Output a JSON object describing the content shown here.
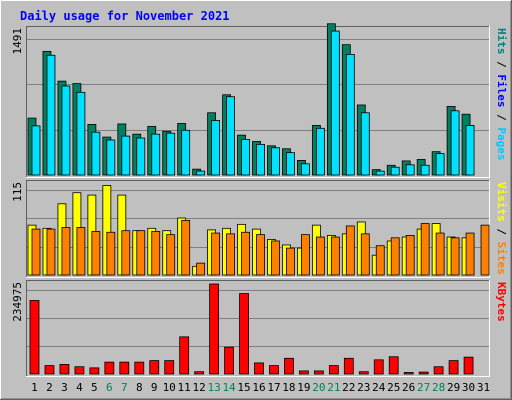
{
  "title": "Daily usage for November 2021",
  "colors": {
    "hits": "#008080",
    "files": "#00e0ff",
    "pages": "#00c8ff",
    "visits": "#ffff00",
    "sites": "#ff8000",
    "kbytes": "#ff0000",
    "weekend_label": "#00805c",
    "plot_bg": "#c0c0c0",
    "title": "#0000ff"
  },
  "chart_data": [
    {
      "type": "bar",
      "name": "hits-files-pages",
      "ymax_label": "1491",
      "ylim": [
        0,
        1491
      ],
      "side_label": [
        {
          "text": "Pages",
          "color": "#00c8ff"
        },
        {
          "text": " / ",
          "color": "#000000"
        },
        {
          "text": "Files",
          "color": "#0000ff"
        },
        {
          "text": " / ",
          "color": "#000000"
        },
        {
          "text": "Hits",
          "color": "#008080"
        }
      ],
      "categories": [
        "1",
        "2",
        "3",
        "4",
        "5",
        "6",
        "7",
        "8",
        "9",
        "10",
        "11",
        "12",
        "13",
        "14",
        "15",
        "16",
        "17",
        "18",
        "19",
        "20",
        "21",
        "22",
        "23",
        "24",
        "25",
        "26",
        "27",
        "28",
        "29",
        "30",
        "31"
      ],
      "series": [
        {
          "name": "Hits",
          "values": [
            585,
            1271,
            965,
            940,
            520,
            390,
            525,
            420,
            500,
            450,
            530,
            60,
            640,
            825,
            410,
            345,
            300,
            270,
            150,
            510,
            1555,
            1340,
            720,
            55,
            100,
            145,
            160,
            240,
            705,
            625,
            0
          ]
        },
        {
          "name": "Files",
          "values": [
            505,
            1231,
            915,
            850,
            440,
            360,
            400,
            380,
            420,
            430,
            460,
            40,
            560,
            805,
            365,
            315,
            280,
            230,
            115,
            480,
            1480,
            1240,
            640,
            40,
            80,
            105,
            100,
            220,
            660,
            510,
            0
          ]
        },
        {
          "name": "Pages",
          "values": [
            490,
            1221,
            905,
            830,
            435,
            355,
            395,
            375,
            415,
            420,
            455,
            40,
            550,
            800,
            360,
            310,
            275,
            225,
            110,
            475,
            1470,
            1225,
            630,
            40,
            75,
            100,
            95,
            215,
            655,
            505,
            0
          ]
        }
      ]
    },
    {
      "type": "bar",
      "name": "visits-sites",
      "ymax_label": "115",
      "ylim": [
        0,
        115
      ],
      "side_label": [
        {
          "text": "Sites",
          "color": "#ff8000"
        },
        {
          "text": " / ",
          "color": "#000000"
        },
        {
          "text": "Visits",
          "color": "#ffff00"
        }
      ],
      "categories": [
        "1",
        "2",
        "3",
        "4",
        "5",
        "6",
        "7",
        "8",
        "9",
        "10",
        "11",
        "12",
        "13",
        "14",
        "15",
        "16",
        "17",
        "18",
        "19",
        "20",
        "21",
        "22",
        "23",
        "24",
        "25",
        "26",
        "27",
        "28",
        "29",
        "30",
        "31"
      ],
      "series": [
        {
          "name": "Visits",
          "values": [
            63,
            59,
            90,
            104,
            101,
            113,
            101,
            56,
            59,
            56,
            72,
            11,
            57,
            59,
            64,
            58,
            45,
            38,
            34,
            63,
            50,
            52,
            67,
            25,
            43,
            48,
            58,
            65,
            48,
            47,
            0
          ]
        },
        {
          "name": "Sites",
          "values": [
            58,
            58,
            60,
            60,
            55,
            54,
            56,
            56,
            55,
            51,
            69,
            15,
            53,
            52,
            54,
            51,
            43,
            34,
            51,
            48,
            48,
            62,
            52,
            37,
            47,
            50,
            65,
            53,
            47,
            53,
            63
          ]
        }
      ]
    },
    {
      "type": "bar",
      "name": "kbytes",
      "ymax_label": "234975",
      "ylim": [
        0,
        234975
      ],
      "side_label": [
        {
          "text": "KBytes",
          "color": "#ff0000"
        }
      ],
      "categories": [
        "1",
        "2",
        "3",
        "4",
        "5",
        "6",
        "7",
        "8",
        "9",
        "10",
        "11",
        "12",
        "13",
        "14",
        "15",
        "16",
        "17",
        "18",
        "19",
        "20",
        "21",
        "22",
        "23",
        "24",
        "25",
        "26",
        "27",
        "28",
        "29",
        "30",
        "31"
      ],
      "series": [
        {
          "name": "KBytes",
          "values": [
            192000,
            22000,
            25000,
            19000,
            16000,
            31000,
            31000,
            31000,
            35000,
            35000,
            97000,
            6000,
            235000,
            70000,
            210000,
            29000,
            22000,
            41000,
            8000,
            8000,
            22000,
            41000,
            6000,
            37000,
            45000,
            4000,
            5000,
            19000,
            35000,
            44000,
            0
          ]
        }
      ]
    }
  ],
  "x_labels": [
    {
      "text": "1",
      "weekend": false
    },
    {
      "text": "2",
      "weekend": false
    },
    {
      "text": "3",
      "weekend": false
    },
    {
      "text": "4",
      "weekend": false
    },
    {
      "text": "5",
      "weekend": false
    },
    {
      "text": "6",
      "weekend": true
    },
    {
      "text": "7",
      "weekend": true
    },
    {
      "text": "8",
      "weekend": false
    },
    {
      "text": "9",
      "weekend": false
    },
    {
      "text": "10",
      "weekend": false
    },
    {
      "text": "11",
      "weekend": false
    },
    {
      "text": "12",
      "weekend": false
    },
    {
      "text": "13",
      "weekend": true
    },
    {
      "text": "14",
      "weekend": true
    },
    {
      "text": "15",
      "weekend": false
    },
    {
      "text": "16",
      "weekend": false
    },
    {
      "text": "17",
      "weekend": false
    },
    {
      "text": "18",
      "weekend": false
    },
    {
      "text": "19",
      "weekend": false
    },
    {
      "text": "20",
      "weekend": true
    },
    {
      "text": "21",
      "weekend": true
    },
    {
      "text": "22",
      "weekend": false
    },
    {
      "text": "23",
      "weekend": false
    },
    {
      "text": "24",
      "weekend": false
    },
    {
      "text": "25",
      "weekend": false
    },
    {
      "text": "26",
      "weekend": false
    },
    {
      "text": "27",
      "weekend": true
    },
    {
      "text": "28",
      "weekend": true
    },
    {
      "text": "29",
      "weekend": false
    },
    {
      "text": "30",
      "weekend": false
    },
    {
      "text": "31",
      "weekend": false
    }
  ]
}
